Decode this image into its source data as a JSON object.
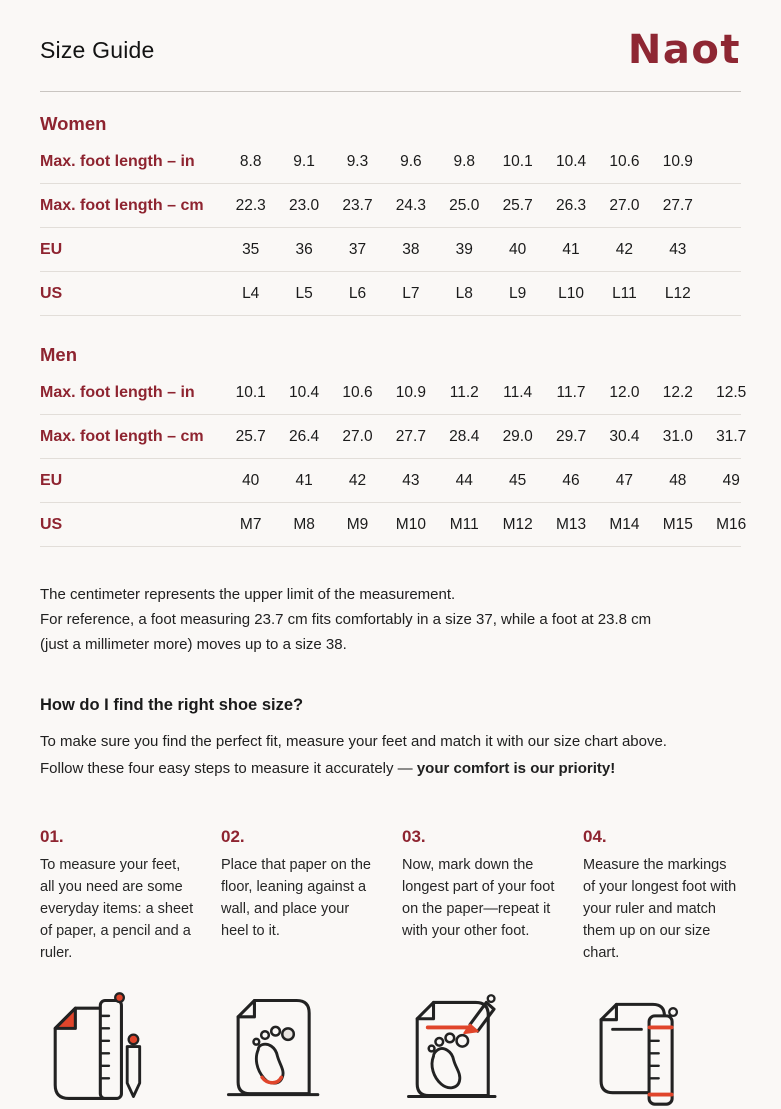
{
  "page": {
    "title": "Size Guide",
    "brand": "Naot"
  },
  "colors": {
    "background": "#faf8f6",
    "brand_dark_red": "#8e2733",
    "heading_red": "#8e2430",
    "icon_accent_red": "#e0452b",
    "body_text": "#1f1f1f",
    "divider": "#e2ded9"
  },
  "women": {
    "heading": "Women",
    "rows": [
      {
        "label": "Max. foot length – in",
        "values": [
          "8.8",
          "9.1",
          "9.3",
          "9.6",
          "9.8",
          "10.1",
          "10.4",
          "10.6",
          "10.9"
        ]
      },
      {
        "label": "Max. foot length – cm",
        "values": [
          "22.3",
          "23.0",
          "23.7",
          "24.3",
          "25.0",
          "25.7",
          "26.3",
          "27.0",
          "27.7"
        ]
      },
      {
        "label": "EU",
        "values": [
          "35",
          "36",
          "37",
          "38",
          "39",
          "40",
          "41",
          "42",
          "43"
        ]
      },
      {
        "label": "US",
        "values": [
          "L4",
          "L5",
          "L6",
          "L7",
          "L8",
          "L9",
          "L10",
          "L11",
          "L12"
        ]
      }
    ]
  },
  "men": {
    "heading": "Men",
    "rows": [
      {
        "label": "Max. foot length – in",
        "values": [
          "10.1",
          "10.4",
          "10.6",
          "10.9",
          "11.2",
          "11.4",
          "11.7",
          "12.0",
          "12.2",
          "12.5"
        ]
      },
      {
        "label": "Max. foot length – cm",
        "values": [
          "25.7",
          "26.4",
          "27.0",
          "27.7",
          "28.4",
          "29.0",
          "29.7",
          "30.4",
          "31.0",
          "31.7"
        ]
      },
      {
        "label": "EU",
        "values": [
          "40",
          "41",
          "42",
          "43",
          "44",
          "45",
          "46",
          "47",
          "48",
          "49"
        ]
      },
      {
        "label": "US",
        "values": [
          "M7",
          "M8",
          "M9",
          "M10",
          "M11",
          "M12",
          "M13",
          "M14",
          "M15",
          "M16"
        ]
      }
    ]
  },
  "notes": {
    "lines": [
      "The centimeter represents the upper limit of the measurement.",
      "For reference, a foot measuring 23.7 cm fits comfortably in a size 37, while a foot at 23.8 cm",
      "(just a millimeter more) moves up to a size 38."
    ]
  },
  "how_to": {
    "heading": "How do I find the right shoe size?",
    "intro": "To make sure you find the perfect fit, measure your feet and match it with our size chart above. Follow these four easy steps to measure it accurately — ",
    "intro_emphasis": "your comfort is our priority!"
  },
  "steps": [
    {
      "number": "01.",
      "text": "To measure your feet, all you need are some everyday items: a sheet of paper, a pencil and a ruler.",
      "icon": "paper-ruler-pencil-icon"
    },
    {
      "number": "02.",
      "text": "Place that paper on the floor, leaning against a wall, and place your heel to it.",
      "icon": "paper-footprint-heel-icon"
    },
    {
      "number": "03.",
      "text": "Now, mark down the longest part of your foot on the paper—repeat it with your other foot.",
      "icon": "paper-footprint-pencil-mark-icon"
    },
    {
      "number": "04.",
      "text": "Measure the markings of your longest foot with your ruler and match them up on our size chart.",
      "icon": "paper-ruler-measure-icon"
    }
  ]
}
